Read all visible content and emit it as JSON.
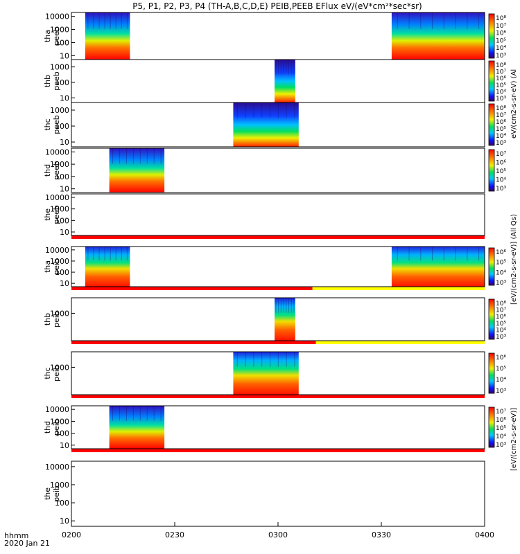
{
  "title": "P5, P1, P2, P3, P4 (TH-A,B,C,D,E) PEIB,PEEB EFlux eV/(eV*cm²*sec*sr)",
  "time_axis": {
    "ticks": [
      "0200",
      "0230",
      "0300",
      "0330",
      "0400"
    ],
    "corner_label": "hhmm",
    "date_label": "2020 Jan 21"
  },
  "colorbar_label_top": "eV/(cm2-s-sr-eV) (Al",
  "colorbar_label_mid": "[eV/(cm2-s-sr-eV)] (All Qs)",
  "colorbar_label_bottom": "[eV/(cm2-s-sr-eV)]",
  "chart_data": {
    "type": "heatmap",
    "x_unit": "time (UT, hhmm)",
    "x_range": [
      "02:00",
      "04:00"
    ],
    "panels": [
      {
        "id": "tha_peeb",
        "label_line1": "tha",
        "label_line2": "peeb",
        "y_ticks": [
          "10000",
          "1000",
          "100",
          "10"
        ],
        "y_log_range": [
          5,
          20000
        ],
        "z_ticks": [
          "10⁸",
          "10⁷",
          "10⁶",
          "10⁵",
          "10⁴",
          "10³"
        ],
        "data_segments": [
          [
            "02:04",
            "02:17"
          ],
          [
            "03:33",
            "04:00"
          ]
        ],
        "status_bar": null
      },
      {
        "id": "thb_peeb",
        "label_line1": "thb",
        "label_line2": "peeb",
        "y_ticks": [
          "1000",
          "100",
          "10"
        ],
        "y_log_range": [
          5,
          3000
        ],
        "z_ticks": [
          "10⁸",
          "10⁷",
          "10⁶",
          "10⁵",
          "10⁴",
          "10³"
        ],
        "data_segments": [
          [
            "02:59",
            "03:05"
          ]
        ],
        "status_bar": null
      },
      {
        "id": "thc_peeb",
        "label_line1": "thc",
        "label_line2": "peeb",
        "y_ticks": [
          "1000",
          "100",
          "10"
        ],
        "y_log_range": [
          5,
          3000
        ],
        "z_ticks": [
          "10⁸",
          "10⁷",
          "10⁶",
          "10⁵",
          "10⁴",
          "10³"
        ],
        "data_segments": [
          [
            "02:47",
            "03:06"
          ]
        ],
        "status_bar": null
      },
      {
        "id": "thd_peeb",
        "label_line1": "thd",
        "label_line2": "peeb",
        "y_ticks": [
          "10000",
          "1000",
          "100",
          "10"
        ],
        "y_log_range": [
          5,
          20000
        ],
        "z_ticks": [
          "10⁷",
          "10⁶",
          "10⁵",
          "10⁴",
          "10³"
        ],
        "data_segments": [
          [
            "02:11",
            "02:27"
          ]
        ],
        "status_bar": null
      },
      {
        "id": "the_peeb",
        "label_line1": "the",
        "label_line2": "peeb",
        "y_ticks": [
          "10000",
          "1000",
          "100",
          "10"
        ],
        "y_log_range": [
          5,
          20000
        ],
        "z_ticks": [],
        "data_segments": [],
        "status_bar": {
          "red_until": "04:00"
        }
      },
      {
        "id": "tha_peib",
        "label_line1": "tha",
        "label_line2": "peib",
        "y_ticks": [
          "10000",
          "1000",
          "100",
          "10"
        ],
        "y_log_range": [
          5,
          20000
        ],
        "z_ticks": [
          "10⁶",
          "10⁵",
          "10⁴",
          "10³"
        ],
        "data_segments": [
          [
            "02:04",
            "02:17"
          ],
          [
            "03:33",
            "04:00"
          ]
        ],
        "status_bar": {
          "red_until": "03:10"
        }
      },
      {
        "id": "thb_peib",
        "label_line1": "thb",
        "label_line2": "peib",
        "y_ticks": [
          "1000"
        ],
        "y_log_range": [
          5,
          20000
        ],
        "z_ticks": [
          "10⁸",
          "10⁷",
          "10⁶",
          "10⁵",
          "10⁴",
          "10³"
        ],
        "data_segments": [
          [
            "02:59",
            "03:05"
          ]
        ],
        "status_bar": {
          "red_until": "03:11"
        }
      },
      {
        "id": "thc_peib",
        "label_line1": "thc",
        "label_line2": "peib",
        "y_ticks": [
          "1000"
        ],
        "y_log_range": [
          5,
          20000
        ],
        "z_ticks": [
          "10⁶",
          "10⁵",
          "10⁴",
          "10³"
        ],
        "data_segments": [
          [
            "02:47",
            "03:06"
          ]
        ],
        "status_bar": {
          "red_until": "04:00"
        }
      },
      {
        "id": "thd_peib",
        "label_line1": "thd",
        "label_line2": "peib",
        "y_ticks": [
          "10000",
          "1000",
          "100",
          "10"
        ],
        "y_log_range": [
          5,
          20000
        ],
        "z_ticks": [
          "10⁷",
          "10⁶",
          "10⁵",
          "10⁴",
          "10³"
        ],
        "data_segments": [
          [
            "02:11",
            "02:27"
          ]
        ],
        "status_bar": {
          "red_until": "04:00"
        }
      },
      {
        "id": "the_peib",
        "label_line1": "the",
        "label_line2": "peib",
        "y_ticks": [
          "10000",
          "1000",
          "100",
          "10"
        ],
        "y_log_range": [
          5,
          20000
        ],
        "z_ticks": [],
        "data_segments": [],
        "status_bar": null
      }
    ]
  }
}
